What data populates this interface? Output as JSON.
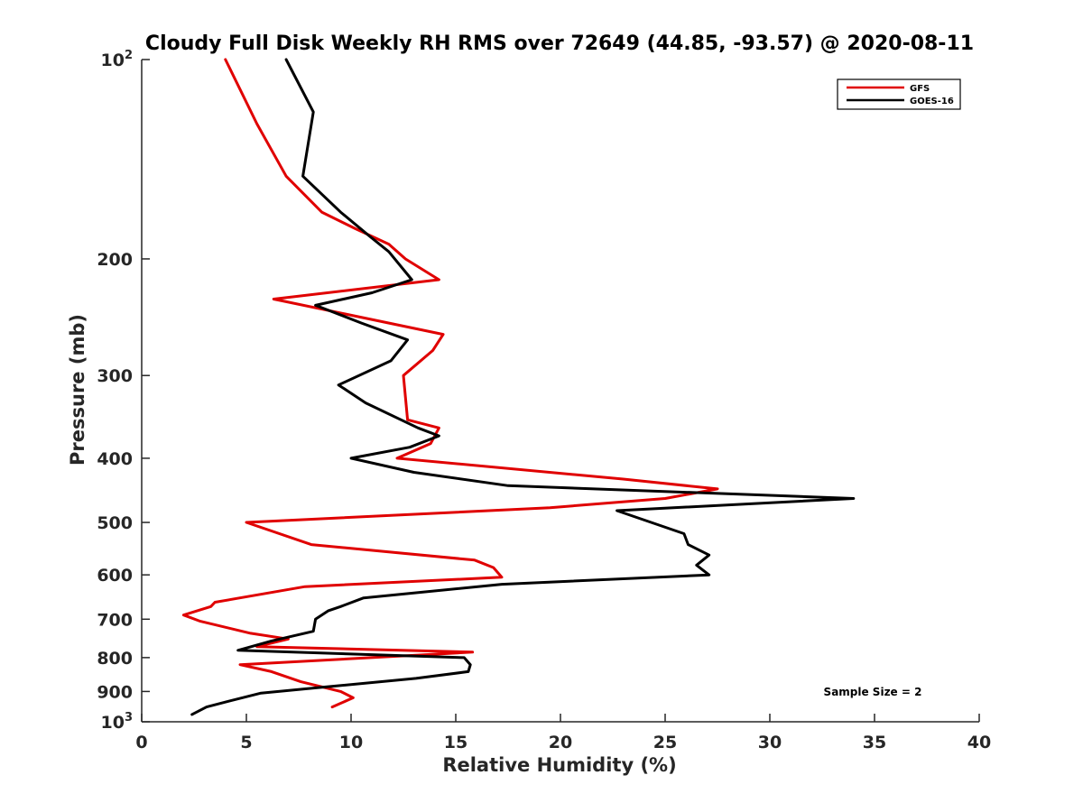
{
  "chart_data": {
    "type": "line",
    "title": "Cloudy Full Disk Weekly RH RMS over 72649 (44.85, -93.57) @ 2020-08-11",
    "xlabel": "Relative Humidity (%)",
    "ylabel": "Pressure (mb)",
    "xlim": [
      0,
      40
    ],
    "ylim": [
      100,
      1000
    ],
    "yscale": "log",
    "y_reversed": true,
    "x_ticks": [
      "0",
      "5",
      "10",
      "15",
      "20",
      "25",
      "30",
      "35",
      "40"
    ],
    "y_ticks": [
      {
        "value": 100,
        "base": "10",
        "exp": "2"
      },
      {
        "value": 200,
        "label": "200"
      },
      {
        "value": 300,
        "label": "300"
      },
      {
        "value": 400,
        "label": "400"
      },
      {
        "value": 500,
        "label": "500"
      },
      {
        "value": 600,
        "label": "600"
      },
      {
        "value": 700,
        "label": "700"
      },
      {
        "value": 800,
        "label": "800"
      },
      {
        "value": 900,
        "label": "900"
      },
      {
        "value": 1000,
        "base": "10",
        "exp": "3"
      }
    ],
    "grid": false,
    "legend_position": "top-right",
    "annotation": "Sample Size = 2",
    "series": [
      {
        "name": "GFS",
        "color": "#e00000",
        "points": [
          [
            4.0,
            100
          ],
          [
            5.5,
            125
          ],
          [
            6.9,
            150
          ],
          [
            8.6,
            170
          ],
          [
            10.2,
            180
          ],
          [
            11.8,
            190
          ],
          [
            12.6,
            200
          ],
          [
            14.2,
            215
          ],
          [
            6.3,
            230
          ],
          [
            14.4,
            260
          ],
          [
            13.9,
            275
          ],
          [
            12.5,
            300
          ],
          [
            12.7,
            350
          ],
          [
            14.2,
            360
          ],
          [
            13.8,
            380
          ],
          [
            12.2,
            400
          ],
          [
            23.0,
            430
          ],
          [
            27.5,
            445
          ],
          [
            25.0,
            460
          ],
          [
            19.5,
            475
          ],
          [
            5.0,
            500
          ],
          [
            8.1,
            540
          ],
          [
            15.9,
            570
          ],
          [
            16.8,
            585
          ],
          [
            17.2,
            605
          ],
          [
            7.8,
            625
          ],
          [
            3.5,
            660
          ],
          [
            3.3,
            670
          ],
          [
            2.0,
            690
          ],
          [
            2.8,
            705
          ],
          [
            5.2,
            735
          ],
          [
            7.0,
            750
          ],
          [
            5.5,
            770
          ],
          [
            15.8,
            785
          ],
          [
            4.7,
            820
          ],
          [
            6.2,
            840
          ],
          [
            7.6,
            870
          ],
          [
            9.5,
            900
          ],
          [
            10.1,
            920
          ],
          [
            9.1,
            950
          ]
        ]
      },
      {
        "name": "GOES-16",
        "color": "#000000",
        "points": [
          [
            6.9,
            100
          ],
          [
            8.2,
            120
          ],
          [
            7.7,
            150
          ],
          [
            9.5,
            170
          ],
          [
            10.9,
            185
          ],
          [
            11.8,
            195
          ],
          [
            12.9,
            215
          ],
          [
            11.0,
            225
          ],
          [
            8.3,
            235
          ],
          [
            10.5,
            250
          ],
          [
            12.7,
            265
          ],
          [
            11.9,
            285
          ],
          [
            9.4,
            310
          ],
          [
            10.7,
            330
          ],
          [
            13.2,
            360
          ],
          [
            14.2,
            370
          ],
          [
            12.8,
            385
          ],
          [
            10.0,
            400
          ],
          [
            13.0,
            420
          ],
          [
            17.5,
            440
          ],
          [
            34.0,
            460
          ],
          [
            22.7,
            480
          ],
          [
            25.9,
            520
          ],
          [
            26.1,
            540
          ],
          [
            27.1,
            560
          ],
          [
            26.5,
            580
          ],
          [
            27.1,
            600
          ],
          [
            17.2,
            620
          ],
          [
            10.6,
            650
          ],
          [
            9.5,
            670
          ],
          [
            8.9,
            680
          ],
          [
            8.3,
            700
          ],
          [
            8.2,
            730
          ],
          [
            6.2,
            755
          ],
          [
            4.6,
            780
          ],
          [
            15.4,
            800
          ],
          [
            15.7,
            820
          ],
          [
            15.6,
            840
          ],
          [
            13.1,
            860
          ],
          [
            8.1,
            890
          ],
          [
            5.7,
            905
          ],
          [
            4.2,
            930
          ],
          [
            3.1,
            950
          ],
          [
            2.4,
            975
          ]
        ]
      }
    ]
  }
}
